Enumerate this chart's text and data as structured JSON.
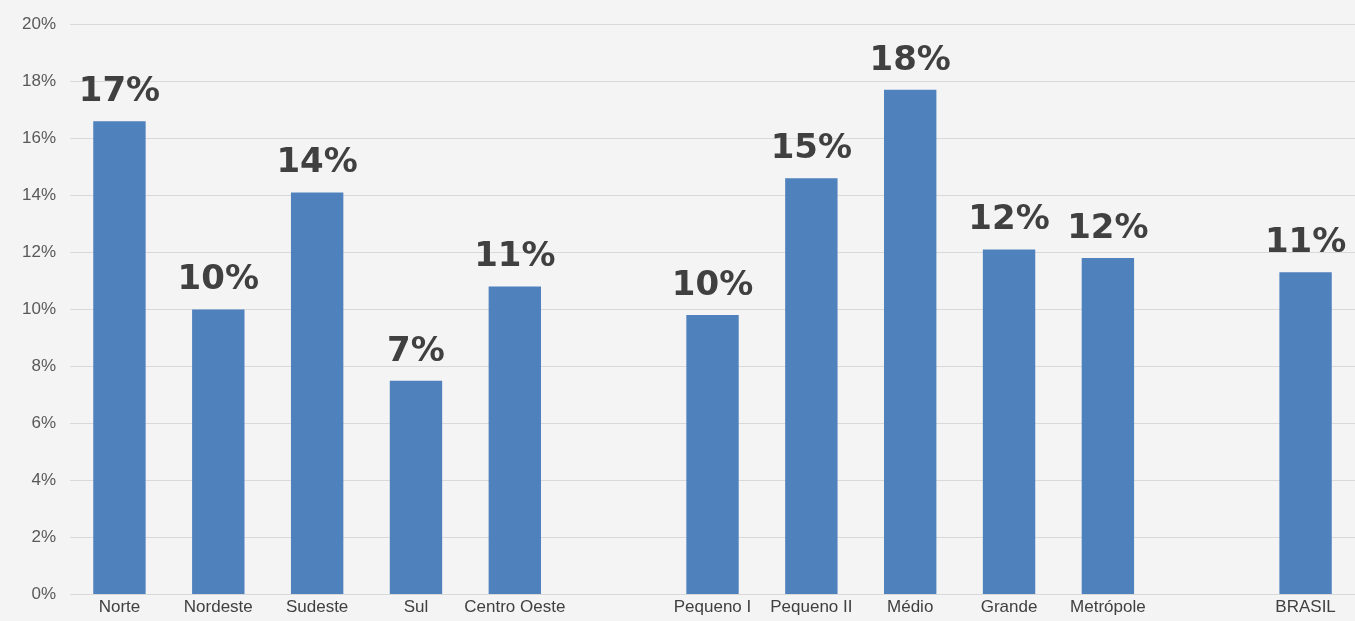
{
  "chart_data": {
    "type": "bar",
    "categories": [
      "Norte",
      "Nordeste",
      "Sudeste",
      "Sul",
      "Centro Oeste",
      null,
      "Pequeno I",
      "Pequeno II",
      "Médio",
      "Grande",
      "Metrópole",
      null,
      "BRASIL"
    ],
    "values": [
      16.6,
      10.0,
      14.1,
      7.5,
      10.8,
      null,
      9.8,
      14.6,
      17.7,
      12.1,
      11.8,
      null,
      11.3
    ],
    "value_labels": [
      "17%",
      "10%",
      "14%",
      "7%",
      "11%",
      null,
      "10%",
      "15%",
      "18%",
      "12%",
      "12%",
      null,
      "11%"
    ],
    "color": "#4f81bd",
    "ylim": [
      0,
      20
    ],
    "yticks": [
      {
        "value": 0,
        "label": "0%"
      },
      {
        "value": 2,
        "label": "2%"
      },
      {
        "value": 4,
        "label": "4%"
      },
      {
        "value": 6,
        "label": "6%"
      },
      {
        "value": 8,
        "label": "8%"
      },
      {
        "value": 10,
        "label": "10%"
      },
      {
        "value": 12,
        "label": "12%"
      },
      {
        "value": 14,
        "label": "14%"
      },
      {
        "value": 16,
        "label": "16%"
      },
      {
        "value": 18,
        "label": "18%"
      },
      {
        "value": 20,
        "label": "20%"
      }
    ],
    "grid": "y"
  }
}
